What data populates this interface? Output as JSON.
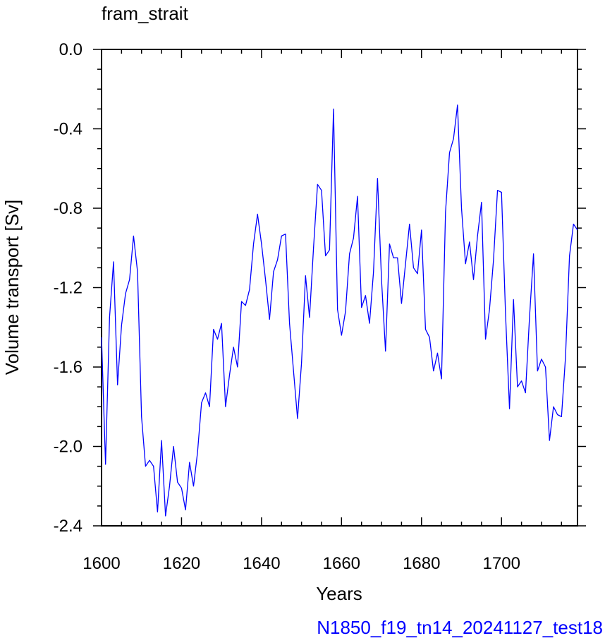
{
  "chart_data": {
    "type": "line",
    "title": "fram_strait",
    "xlabel": "Years",
    "ylabel": "Volume transport [Sv]",
    "xlim": [
      1600,
      1719
    ],
    "ylim": [
      -2.4,
      0.0
    ],
    "x_ticks": [
      "1600",
      "1620",
      "1640",
      "1660",
      "1680",
      "1700"
    ],
    "y_ticks": [
      "0.0",
      "-0.4",
      "-0.8",
      "-1.2",
      "-1.6",
      "-2.0",
      "-2.4"
    ],
    "grid": false,
    "series": [
      {
        "color": "#0000ff",
        "x": [
          1600,
          1601,
          1602,
          1603,
          1604,
          1605,
          1606,
          1607,
          1608,
          1609,
          1610,
          1611,
          1612,
          1613,
          1614,
          1615,
          1616,
          1617,
          1618,
          1619,
          1620,
          1621,
          1622,
          1623,
          1624,
          1625,
          1626,
          1627,
          1628,
          1629,
          1630,
          1631,
          1632,
          1633,
          1634,
          1635,
          1636,
          1637,
          1638,
          1639,
          1640,
          1641,
          1642,
          1643,
          1644,
          1645,
          1646,
          1647,
          1648,
          1649,
          1650,
          1651,
          1652,
          1653,
          1654,
          1655,
          1656,
          1657,
          1658,
          1659,
          1660,
          1661,
          1662,
          1663,
          1664,
          1665,
          1666,
          1667,
          1668,
          1669,
          1670,
          1671,
          1672,
          1673,
          1674,
          1675,
          1676,
          1677,
          1678,
          1679,
          1680,
          1681,
          1682,
          1683,
          1684,
          1685,
          1686,
          1687,
          1688,
          1689,
          1690,
          1691,
          1692,
          1693,
          1694,
          1695,
          1696,
          1697,
          1698,
          1699,
          1700,
          1701,
          1702,
          1703,
          1704,
          1705,
          1706,
          1707,
          1708,
          1709,
          1710,
          1711,
          1712,
          1713,
          1714,
          1715,
          1716,
          1717,
          1718,
          1719
        ],
        "values": [
          -1.45,
          -2.09,
          -1.35,
          -1.07,
          -1.69,
          -1.39,
          -1.23,
          -1.16,
          -0.94,
          -1.12,
          -1.85,
          -2.1,
          -2.07,
          -2.1,
          -2.33,
          -1.97,
          -2.35,
          -2.2,
          -2.0,
          -2.18,
          -2.21,
          -2.32,
          -2.08,
          -2.2,
          -2.03,
          -1.78,
          -1.73,
          -1.8,
          -1.41,
          -1.46,
          -1.38,
          -1.8,
          -1.64,
          -1.5,
          -1.6,
          -1.27,
          -1.29,
          -1.21,
          -0.98,
          -0.83,
          -0.98,
          -1.16,
          -1.36,
          -1.12,
          -1.06,
          -0.94,
          -0.93,
          -1.38,
          -1.62,
          -1.86,
          -1.58,
          -1.14,
          -1.35,
          -1.0,
          -0.68,
          -0.71,
          -1.04,
          -1.01,
          -0.3,
          -1.31,
          -1.44,
          -1.32,
          -1.03,
          -0.95,
          -0.74,
          -1.3,
          -1.24,
          -1.38,
          -1.12,
          -0.65,
          -1.16,
          -1.52,
          -0.98,
          -1.05,
          -1.05,
          -1.28,
          -1.08,
          -0.88,
          -1.1,
          -1.13,
          -0.91,
          -1.41,
          -1.45,
          -1.62,
          -1.53,
          -1.66,
          -0.82,
          -0.52,
          -0.45,
          -0.28,
          -0.8,
          -1.08,
          -0.97,
          -1.16,
          -0.94,
          -0.77,
          -1.46,
          -1.31,
          -1.06,
          -0.71,
          -0.72,
          -1.33,
          -1.81,
          -1.26,
          -1.7,
          -1.67,
          -1.73,
          -1.35,
          -1.03,
          -1.62,
          -1.56,
          -1.6,
          -1.97,
          -1.8,
          -1.84,
          -1.85,
          -1.55,
          -1.04,
          -0.88,
          -0.91
        ]
      }
    ]
  },
  "footer": {
    "text": "N1850_f19_tn14_20241127_test18",
    "color": "#0000ff"
  }
}
